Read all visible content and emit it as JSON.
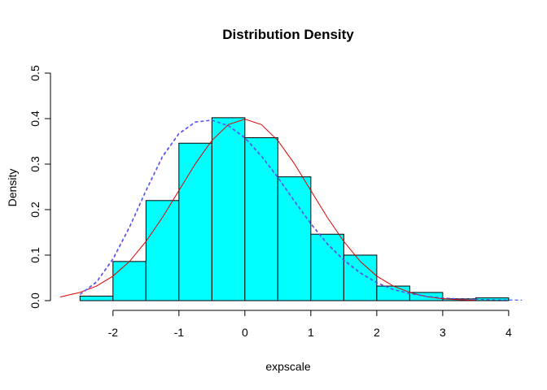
{
  "chart_data": {
    "type": "bar",
    "title": "Distribution Density",
    "xlabel": "expscale",
    "ylabel": "Density",
    "xlim": [
      -2.8,
      4.1
    ],
    "ylim": [
      0,
      0.5
    ],
    "x_ticks": [
      -2,
      -1,
      0,
      1,
      2,
      3,
      4
    ],
    "x_tick_labels": [
      "-2",
      "-1",
      "0",
      "1",
      "2",
      "3",
      "4"
    ],
    "y_ticks": [
      0,
      0.1,
      0.2,
      0.3,
      0.4,
      0.5
    ],
    "y_tick_labels": [
      "0.0",
      "0.1",
      "0.2",
      "0.3",
      "0.4",
      "0.5"
    ],
    "grid": false,
    "bar_color": "#00ffff",
    "bins": [
      {
        "x0": -2.5,
        "x1": -2.0,
        "density": 0.01
      },
      {
        "x0": -2.0,
        "x1": -1.5,
        "density": 0.086
      },
      {
        "x0": -1.5,
        "x1": -1.0,
        "density": 0.22
      },
      {
        "x0": -1.0,
        "x1": -0.5,
        "density": 0.346
      },
      {
        "x0": -0.5,
        "x1": 0.0,
        "density": 0.402
      },
      {
        "x0": 0.0,
        "x1": 0.5,
        "density": 0.358
      },
      {
        "x0": 0.5,
        "x1": 1.0,
        "density": 0.272
      },
      {
        "x0": 1.0,
        "x1": 1.5,
        "density": 0.146
      },
      {
        "x0": 1.5,
        "x1": 2.0,
        "density": 0.1
      },
      {
        "x0": 2.0,
        "x1": 2.5,
        "density": 0.032
      },
      {
        "x0": 2.5,
        "x1": 3.0,
        "density": 0.018
      },
      {
        "x0": 3.0,
        "x1": 3.5,
        "density": 0.004
      },
      {
        "x0": 3.5,
        "x1": 4.0,
        "density": 0.006
      }
    ],
    "series": [
      {
        "line": "solid",
        "color": "#dd0000",
        "x": [
          -2.8,
          -2.5,
          -2.25,
          -2.0,
          -1.75,
          -1.5,
          -1.25,
          -1.0,
          -0.75,
          -0.5,
          -0.25,
          0.0,
          0.25,
          0.5,
          0.75,
          1.0,
          1.25,
          1.5,
          1.75,
          2.0,
          2.25,
          2.5,
          2.75,
          3.0,
          3.25,
          3.5
        ],
        "y": [
          0.008,
          0.018,
          0.032,
          0.054,
          0.086,
          0.13,
          0.183,
          0.242,
          0.301,
          0.352,
          0.387,
          0.399,
          0.387,
          0.352,
          0.301,
          0.242,
          0.183,
          0.13,
          0.086,
          0.054,
          0.032,
          0.018,
          0.009,
          0.004,
          0.002,
          0.001
        ]
      },
      {
        "line": "dashed",
        "color": "#9933cc",
        "x": [
          -2.5,
          -2.25,
          -2.0,
          -1.75,
          -1.5,
          -1.25,
          -1.0,
          -0.75,
          -0.5,
          -0.25,
          0.0,
          0.25,
          0.5,
          0.75,
          1.0,
          1.25,
          1.5,
          1.75,
          2.0,
          2.25,
          2.5,
          2.75,
          3.0,
          3.25,
          3.5,
          3.75,
          4.0,
          4.2
        ],
        "y": [
          0.013,
          0.04,
          0.09,
          0.16,
          0.24,
          0.315,
          0.366,
          0.392,
          0.396,
          0.384,
          0.357,
          0.317,
          0.27,
          0.218,
          0.168,
          0.124,
          0.088,
          0.06,
          0.039,
          0.024,
          0.015,
          0.009,
          0.006,
          0.004,
          0.003,
          0.002,
          0.0015,
          0.001
        ]
      },
      {
        "line": "dashed",
        "color": "#3366ff",
        "x": [
          -2.5,
          -2.25,
          -2.0,
          -1.75,
          -1.5,
          -1.25,
          -1.0,
          -0.75,
          -0.5,
          -0.25,
          0.0,
          0.25,
          0.5,
          0.75,
          1.0,
          1.25,
          1.5,
          1.75,
          2.0,
          2.25,
          2.5,
          2.75,
          3.0,
          3.25,
          3.5,
          3.75,
          4.0,
          4.2
        ],
        "y": [
          0.014,
          0.042,
          0.093,
          0.163,
          0.243,
          0.318,
          0.368,
          0.393,
          0.397,
          0.385,
          0.359,
          0.319,
          0.272,
          0.22,
          0.17,
          0.126,
          0.09,
          0.062,
          0.04,
          0.025,
          0.016,
          0.01,
          0.006,
          0.004,
          0.003,
          0.002,
          0.0015,
          0.001
        ]
      }
    ]
  }
}
